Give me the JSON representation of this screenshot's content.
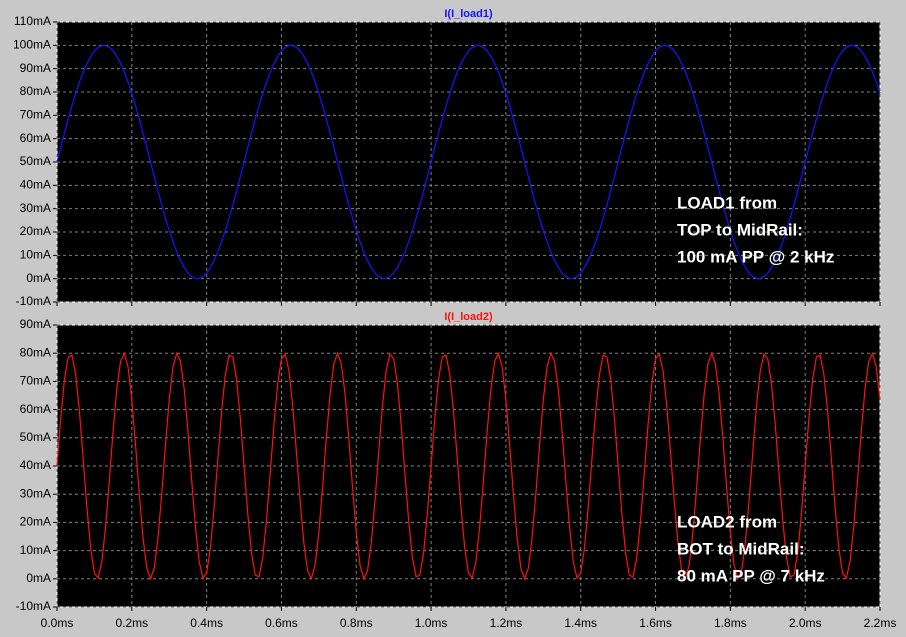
{
  "chart_data": [
    {
      "type": "line",
      "series": [
        {
          "name": "I(I_load1)",
          "color": "#1414ff",
          "values": [
            50,
            56.3,
            62.4,
            68.4,
            74.1,
            79.4,
            84.2,
            88.5,
            92.2,
            95.2,
            97.6,
            99.1,
            99.9,
            99.9,
            99.1,
            97.6,
            95.2,
            92.2,
            88.5,
            84.2,
            79.4,
            74.1,
            68.4,
            62.4,
            56.3,
            50,
            43.7,
            37.6,
            31.6,
            25.9,
            20.6,
            15.8,
            11.5,
            7.8,
            4.8,
            2.4,
            0.9,
            0.1,
            0.1,
            0.9,
            2.4,
            4.8,
            7.8,
            11.5,
            15.8,
            20.6,
            25.9,
            31.6,
            37.6,
            43.7,
            50,
            56.3,
            62.4,
            68.4,
            74.1,
            79.4,
            84.2,
            88.5,
            92.2,
            95.2,
            97.6,
            99.1,
            99.9,
            99.9,
            99.1,
            97.6,
            95.2,
            92.2,
            88.5,
            84.2,
            79.4,
            74.1,
            68.4,
            62.4,
            56.3,
            50,
            43.7,
            37.6,
            31.6,
            25.9,
            20.6,
            15.8,
            11.5,
            7.8,
            4.8,
            2.4,
            0.9,
            0.1,
            0.1,
            0.9,
            2.4,
            4.8,
            7.8,
            11.5,
            15.8,
            20.6,
            25.9,
            31.6,
            37.6,
            43.7,
            50,
            56.3,
            62.4,
            68.4,
            74.1,
            79.4,
            84.2,
            88.5,
            92.2,
            95.2,
            97.6,
            99.1,
            99.9,
            99.9,
            99.1,
            97.6,
            95.2,
            92.2,
            88.5,
            84.2,
            79.4,
            74.1,
            68.4,
            62.4,
            56.3,
            50,
            43.7,
            37.6,
            31.6,
            25.9,
            20.6,
            15.8,
            11.5,
            7.8,
            4.8,
            2.4,
            0.9,
            0.1,
            0.1,
            0.9,
            2.4,
            4.8,
            7.8,
            11.5,
            15.8,
            20.6,
            25.9,
            31.6,
            37.6,
            43.7,
            50,
            56.3,
            62.4,
            68.4,
            74.1,
            79.4,
            84.2,
            88.5,
            92.2,
            95.2,
            97.6,
            99.1,
            99.9,
            99.9,
            99.1,
            97.6,
            95.2,
            92.2,
            88.5,
            84.2,
            79.4,
            74.1,
            68.4,
            62.4,
            56.3,
            50,
            43.7,
            37.6,
            31.6,
            25.9,
            20.6,
            15.8,
            11.5,
            7.8,
            4.8,
            2.4,
            0.9,
            0.1,
            0.1,
            0.9,
            2.4,
            4.8,
            7.8,
            11.5,
            15.8,
            20.6,
            25.9,
            31.6,
            37.6,
            43.7,
            50,
            56.3,
            62.4,
            68.4,
            74.1,
            79.4,
            84.2,
            88.5,
            92.2,
            95.2,
            97.6,
            99.1,
            99.9,
            99.9,
            99.1,
            97.6,
            95.2,
            92.2,
            88.5,
            84.2,
            79.4
          ]
        }
      ],
      "x": [
        0,
        0.01,
        0.02,
        0.03,
        0.04,
        0.05,
        0.06,
        0.07,
        0.08,
        0.09,
        0.1,
        0.11,
        0.12,
        0.13,
        0.14,
        0.15,
        0.16,
        0.17,
        0.18,
        0.19,
        0.2,
        0.21,
        0.22,
        0.23,
        0.24,
        0.25,
        0.26,
        0.27,
        0.28,
        0.29,
        0.3,
        0.31,
        0.32,
        0.33,
        0.34,
        0.35,
        0.36,
        0.37,
        0.38,
        0.39,
        0.4,
        0.41,
        0.42,
        0.43,
        0.44,
        0.45,
        0.46,
        0.47,
        0.48,
        0.49,
        0.5,
        0.51,
        0.52,
        0.53,
        0.54,
        0.55,
        0.56,
        0.57,
        0.58,
        0.59,
        0.6,
        0.61,
        0.62,
        0.63,
        0.64,
        0.65,
        0.66,
        0.67,
        0.68,
        0.69,
        0.7,
        0.71,
        0.72,
        0.73,
        0.74,
        0.75,
        0.76,
        0.77,
        0.78,
        0.79,
        0.8,
        0.81,
        0.82,
        0.83,
        0.84,
        0.85,
        0.86,
        0.87,
        0.88,
        0.89,
        0.9,
        0.91,
        0.92,
        0.93,
        0.94,
        0.95,
        0.96,
        0.97,
        0.98,
        0.99,
        1,
        1.01,
        1.02,
        1.03,
        1.04,
        1.05,
        1.06,
        1.07,
        1.08,
        1.09,
        1.1,
        1.11,
        1.12,
        1.13,
        1.14,
        1.15,
        1.16,
        1.17,
        1.18,
        1.19,
        1.2,
        1.21,
        1.22,
        1.23,
        1.24,
        1.25,
        1.26,
        1.27,
        1.28,
        1.29,
        1.3,
        1.31,
        1.32,
        1.33,
        1.34,
        1.35,
        1.36,
        1.37,
        1.38,
        1.39,
        1.4,
        1.41,
        1.42,
        1.43,
        1.44,
        1.45,
        1.46,
        1.47,
        1.48,
        1.49,
        1.5,
        1.51,
        1.52,
        1.53,
        1.54,
        1.55,
        1.56,
        1.57,
        1.58,
        1.59,
        1.6,
        1.61,
        1.62,
        1.63,
        1.64,
        1.65,
        1.66,
        1.67,
        1.68,
        1.69,
        1.7,
        1.71,
        1.72,
        1.73,
        1.74,
        1.75,
        1.76,
        1.77,
        1.78,
        1.79,
        1.8,
        1.81,
        1.82,
        1.83,
        1.84,
        1.85,
        1.86,
        1.87,
        1.88,
        1.89,
        1.9,
        1.91,
        1.92,
        1.93,
        1.94,
        1.95,
        1.96,
        1.97,
        1.98,
        1.99,
        2,
        2.01,
        2.02,
        2.03,
        2.04,
        2.05,
        2.06,
        2.07,
        2.08,
        2.09,
        2.1,
        2.11,
        2.12,
        2.13,
        2.14,
        2.15,
        2.16,
        2.17,
        2.18,
        2.19,
        2.2
      ],
      "xlim": [
        0,
        2.2
      ],
      "xticks": [
        0,
        0.2,
        0.4,
        0.6,
        0.8,
        1,
        1.2,
        1.4,
        1.6,
        1.8,
        2,
        2.2
      ],
      "ylim": [
        -10,
        110
      ],
      "yticks": [
        {
          "value": -10,
          "label": "-10mA"
        },
        {
          "value": 0,
          "label": "0mA"
        },
        {
          "value": 10,
          "label": "10mA"
        },
        {
          "value": 20,
          "label": "20mA"
        },
        {
          "value": 30,
          "label": "30mA"
        },
        {
          "value": 40,
          "label": "40mA"
        },
        {
          "value": 50,
          "label": "50mA"
        },
        {
          "value": 60,
          "label": "60mA"
        },
        {
          "value": 70,
          "label": "70mA"
        },
        {
          "value": 80,
          "label": "80mA"
        },
        {
          "value": 90,
          "label": "90mA"
        },
        {
          "value": 100,
          "label": "100mA"
        },
        {
          "value": 110,
          "label": "110mA"
        }
      ],
      "grid": true,
      "annotations": [
        "LOAD1 from",
        "TOP to MidRail:",
        "100 mA PP @ 2 kHz"
      ]
    },
    {
      "type": "line",
      "series": [
        {
          "name": "I(I_load2)",
          "color": "#ff1010",
          "values": [
            40,
            57.0,
            70.8,
            78.7,
            79.3,
            72.4,
            59.3,
            42.5,
            25.3,
            10.8,
            2.0,
            0.3,
            6.2,
            18.6,
            35.0,
            52.4,
            67.4,
            77.2,
            79.9,
            75.1,
            63.5,
            47.5,
            30.1,
            14.5,
            3.8,
            0,
            3.8,
            14.5,
            30.1,
            47.5,
            63.5,
            75.1,
            79.9,
            77.2,
            67.4,
            52.4,
            35.0,
            18.6,
            6.2,
            0.3,
            2.0,
            10.8,
            25.3,
            42.5,
            59.3,
            72.4,
            79.3,
            78.7,
            70.8,
            57.0,
            40,
            23,
            9.2,
            1.3,
            0.7,
            7.6,
            20.7,
            37.5,
            54.7,
            69.2,
            78,
            79.7,
            73.8,
            61.4,
            45,
            27.6,
            12.6,
            2.8,
            0.1,
            4.9,
            16.5,
            32.5,
            49.9,
            65.5,
            76.2,
            80,
            76.2,
            65.5,
            49.9,
            32.5,
            16.5,
            4.9,
            0.1,
            2.8,
            12.6,
            27.6,
            45,
            61.4,
            73.8,
            79.7,
            78,
            69.2,
            54.7,
            37.5,
            20.7,
            7.6,
            0.7,
            1.3,
            9.2,
            23,
            40,
            57.0,
            70.8,
            78.7,
            79.3,
            72.4,
            59.3,
            42.5,
            25.3,
            10.8,
            2.0,
            0.3,
            6.2,
            18.6,
            35.0,
            52.4,
            67.4,
            77.2,
            79.9,
            75.1,
            63.5,
            47.5,
            30.1,
            14.5,
            3.8,
            0,
            3.8,
            14.5,
            30.1,
            47.5,
            63.5,
            75.1,
            79.9,
            77.2,
            67.4,
            52.4,
            35.0,
            18.6,
            6.2,
            0.3,
            2.0,
            10.8,
            25.3,
            42.5,
            59.3,
            72.4,
            79.3,
            78.7,
            70.8,
            57.0,
            40,
            23,
            9.2,
            1.3,
            0.7,
            7.6,
            20.7,
            37.5,
            54.7,
            69.2,
            78,
            79.7,
            73.8,
            61.4,
            45,
            27.6,
            12.6,
            2.8,
            0.1,
            4.9,
            16.5,
            32.5,
            49.9,
            65.5,
            76.2,
            80,
            76.2,
            65.5,
            49.9,
            32.5,
            16.5,
            4.9,
            0.1,
            2.8,
            12.6,
            27.6,
            45,
            61.4,
            73.8,
            79.7,
            78,
            69.2,
            54.7,
            37.5,
            20.7,
            7.6,
            0.7,
            1.3,
            9.2,
            23,
            40,
            57.0,
            70.8,
            78.7,
            79.3,
            72.4,
            59.3,
            42.5,
            25.3,
            10.8,
            2.0,
            0.3,
            6.2,
            18.6,
            35.0,
            52.4,
            67.4,
            77.2,
            79.9,
            75.1,
            63.5
          ]
        }
      ],
      "x": [
        0,
        0.01,
        0.02,
        0.03,
        0.04,
        0.05,
        0.06,
        0.07,
        0.08,
        0.09,
        0.1,
        0.11,
        0.12,
        0.13,
        0.14,
        0.15,
        0.16,
        0.17,
        0.18,
        0.19,
        0.2,
        0.21,
        0.22,
        0.23,
        0.24,
        0.25,
        0.26,
        0.27,
        0.28,
        0.29,
        0.3,
        0.31,
        0.32,
        0.33,
        0.34,
        0.35,
        0.36,
        0.37,
        0.38,
        0.39,
        0.4,
        0.41,
        0.42,
        0.43,
        0.44,
        0.45,
        0.46,
        0.47,
        0.48,
        0.49,
        0.5,
        0.51,
        0.52,
        0.53,
        0.54,
        0.55,
        0.56,
        0.57,
        0.58,
        0.59,
        0.6,
        0.61,
        0.62,
        0.63,
        0.64,
        0.65,
        0.66,
        0.67,
        0.68,
        0.69,
        0.7,
        0.71,
        0.72,
        0.73,
        0.74,
        0.75,
        0.76,
        0.77,
        0.78,
        0.79,
        0.8,
        0.81,
        0.82,
        0.83,
        0.84,
        0.85,
        0.86,
        0.87,
        0.88,
        0.89,
        0.9,
        0.91,
        0.92,
        0.93,
        0.94,
        0.95,
        0.96,
        0.97,
        0.98,
        0.99,
        1,
        1.01,
        1.02,
        1.03,
        1.04,
        1.05,
        1.06,
        1.07,
        1.08,
        1.09,
        1.1,
        1.11,
        1.12,
        1.13,
        1.14,
        1.15,
        1.16,
        1.17,
        1.18,
        1.19,
        1.2,
        1.21,
        1.22,
        1.23,
        1.24,
        1.25,
        1.26,
        1.27,
        1.28,
        1.29,
        1.3,
        1.31,
        1.32,
        1.33,
        1.34,
        1.35,
        1.36,
        1.37,
        1.38,
        1.39,
        1.4,
        1.41,
        1.42,
        1.43,
        1.44,
        1.45,
        1.46,
        1.47,
        1.48,
        1.49,
        1.5,
        1.51,
        1.52,
        1.53,
        1.54,
        1.55,
        1.56,
        1.57,
        1.58,
        1.59,
        1.6,
        1.61,
        1.62,
        1.63,
        1.64,
        1.65,
        1.66,
        1.67,
        1.68,
        1.69,
        1.7,
        1.71,
        1.72,
        1.73,
        1.74,
        1.75,
        1.76,
        1.77,
        1.78,
        1.79,
        1.8,
        1.81,
        1.82,
        1.83,
        1.84,
        1.85,
        1.86,
        1.87,
        1.88,
        1.89,
        1.9,
        1.91,
        1.92,
        1.93,
        1.94,
        1.95,
        1.96,
        1.97,
        1.98,
        1.99,
        2,
        2.01,
        2.02,
        2.03,
        2.04,
        2.05,
        2.06,
        2.07,
        2.08,
        2.09,
        2.1,
        2.11,
        2.12,
        2.13,
        2.14,
        2.15,
        2.16,
        2.17,
        2.18,
        2.19,
        2.2
      ],
      "xlim": [
        0,
        2.2
      ],
      "xticks": [
        {
          "value": 0,
          "label": "0.0ms"
        },
        {
          "value": 0.2,
          "label": "0.2ms"
        },
        {
          "value": 0.4,
          "label": "0.4ms"
        },
        {
          "value": 0.6,
          "label": "0.6ms"
        },
        {
          "value": 0.8,
          "label": "0.8ms"
        },
        {
          "value": 1,
          "label": "1.0ms"
        },
        {
          "value": 1.2,
          "label": "1.2ms"
        },
        {
          "value": 1.4,
          "label": "1.4ms"
        },
        {
          "value": 1.6,
          "label": "1.6ms"
        },
        {
          "value": 1.8,
          "label": "1.8ms"
        },
        {
          "value": 2,
          "label": "2.0ms"
        },
        {
          "value": 2.2,
          "label": "2.2ms"
        }
      ],
      "ylim": [
        -10,
        90
      ],
      "yticks": [
        {
          "value": -10,
          "label": "-10mA"
        },
        {
          "value": 0,
          "label": "0mA"
        },
        {
          "value": 10,
          "label": "10mA"
        },
        {
          "value": 20,
          "label": "20mA"
        },
        {
          "value": 30,
          "label": "30mA"
        },
        {
          "value": 40,
          "label": "40mA"
        },
        {
          "value": 50,
          "label": "50mA"
        },
        {
          "value": 60,
          "label": "60mA"
        },
        {
          "value": 70,
          "label": "70mA"
        },
        {
          "value": 80,
          "label": "80mA"
        },
        {
          "value": 90,
          "label": "90mA"
        }
      ],
      "grid": true,
      "annotations": [
        "LOAD2 from",
        "BOT to MidRail:",
        "80 mA PP @ 7 kHz"
      ]
    }
  ]
}
